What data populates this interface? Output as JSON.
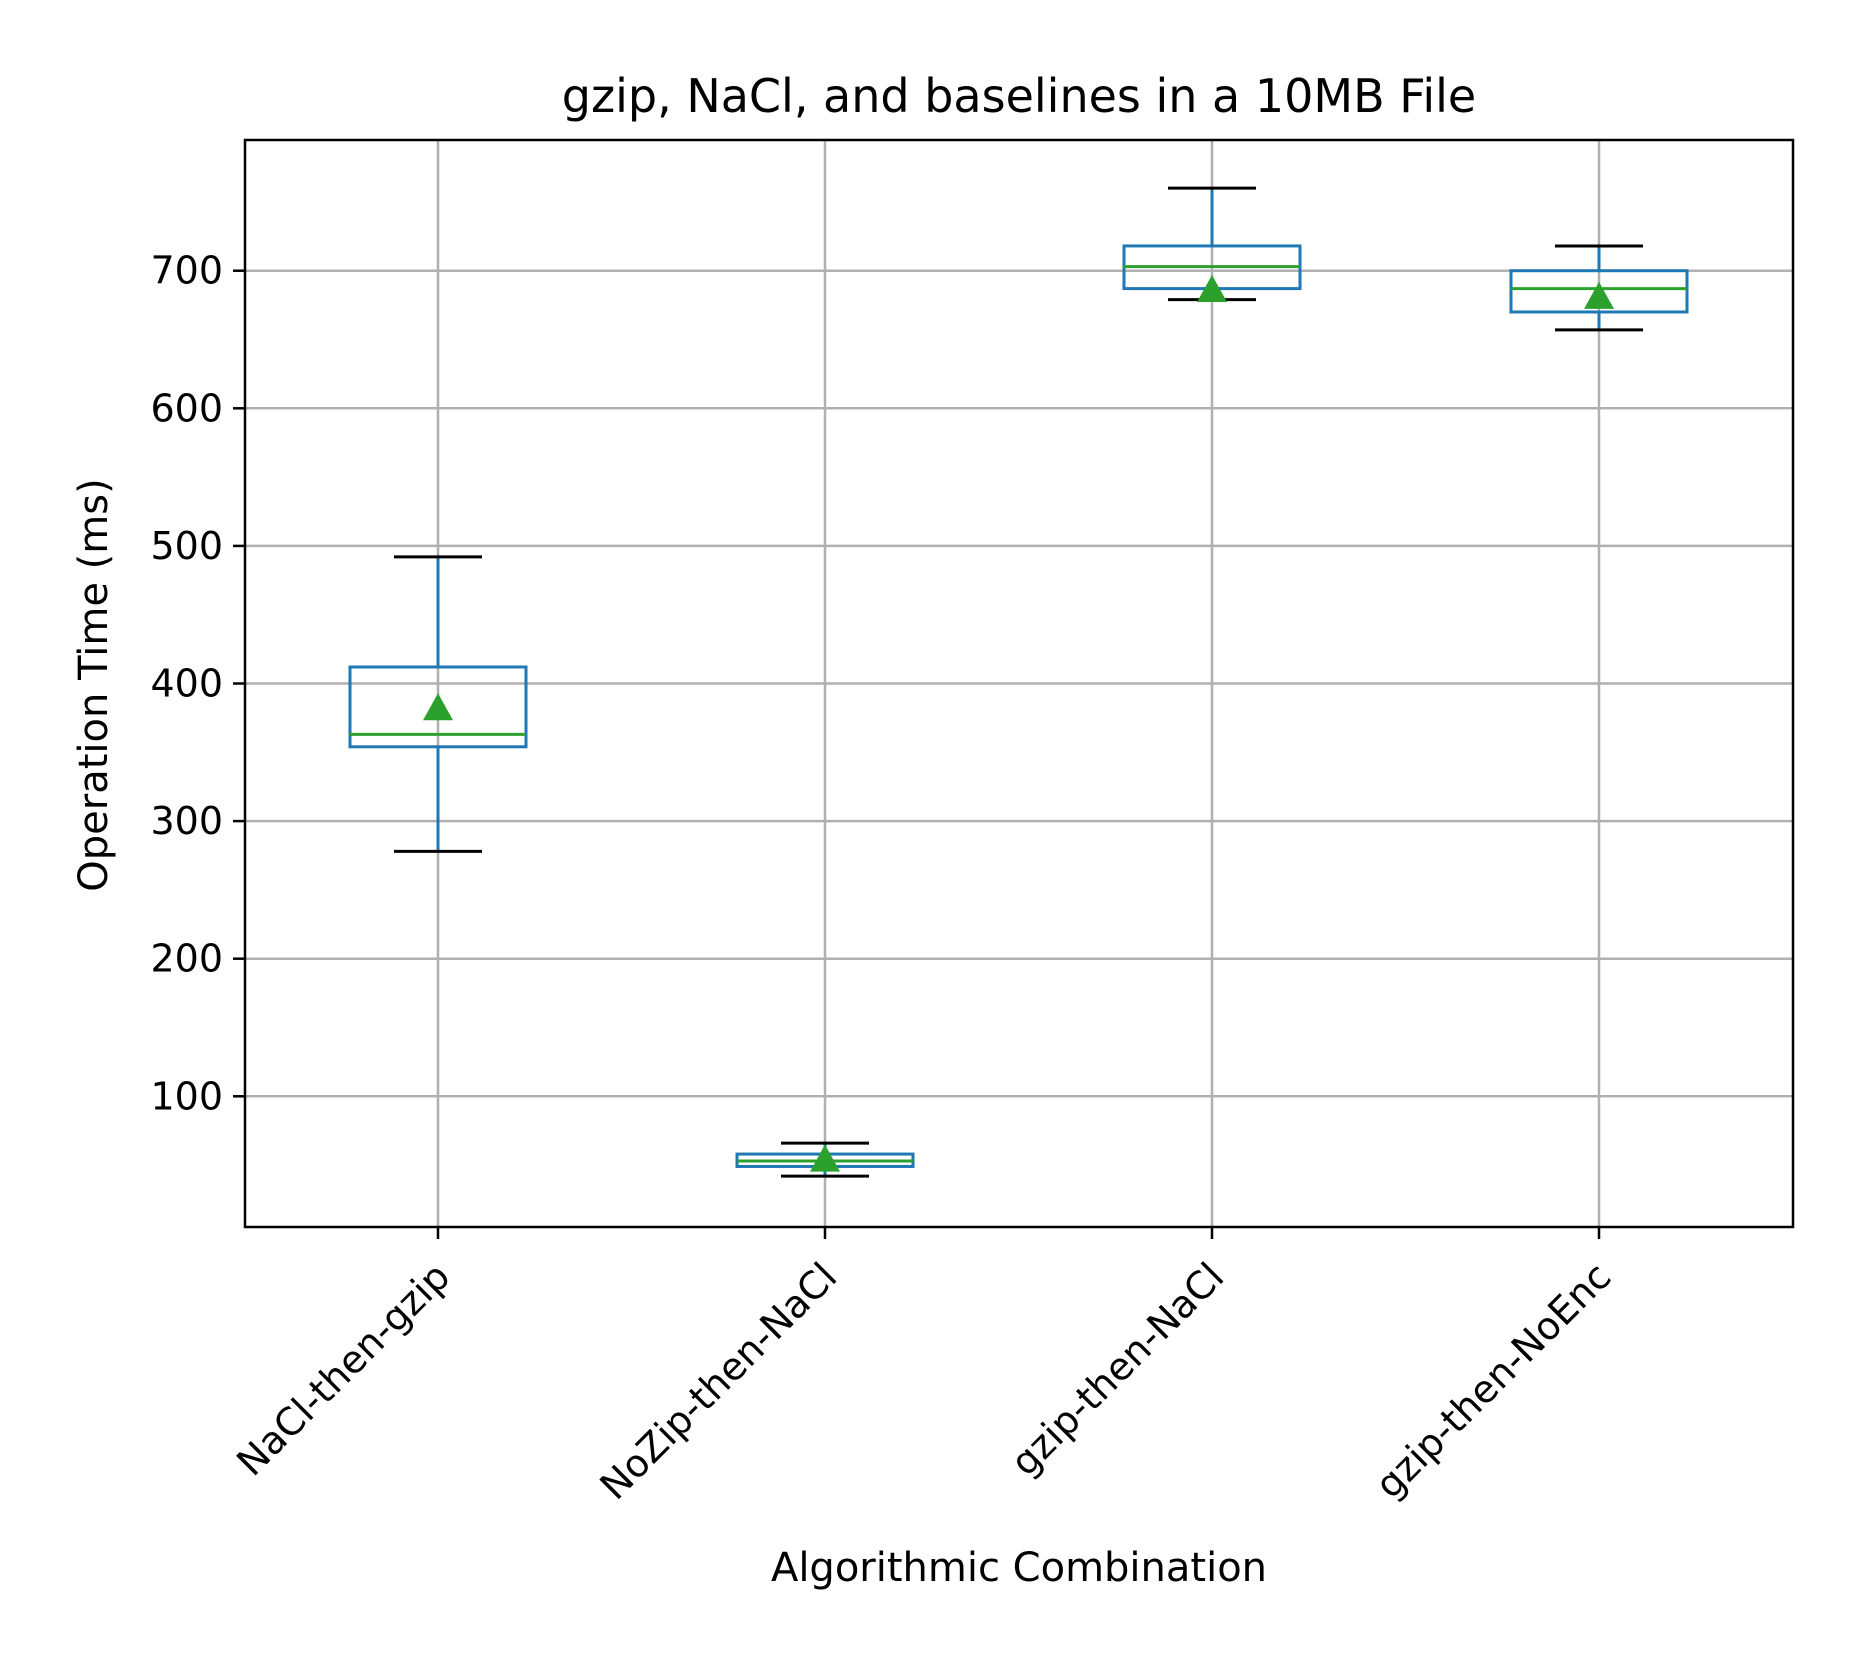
{
  "chart_data": {
    "type": "box",
    "title": "gzip, NaCl, and baselines in a 10MB File",
    "xlabel": "Algorithmic Combination",
    "ylabel": "Operation Time (ms)",
    "ylim": [
      5,
      795
    ],
    "yticks": [
      100,
      200,
      300,
      400,
      500,
      600,
      700
    ],
    "grid": true,
    "categories": [
      "NaCl-then-gzip",
      "NoZip-then-NaCl",
      "gzip-then-NaCl",
      "gzip-then-NoEnc"
    ],
    "boxes": [
      {
        "whisker_low": 278,
        "q1": 354,
        "median": 363,
        "q3": 412,
        "whisker_high": 492,
        "mean": 382
      },
      {
        "whisker_low": 42,
        "q1": 49,
        "median": 53,
        "q3": 58,
        "whisker_high": 66,
        "mean": 54
      },
      {
        "whisker_low": 679,
        "q1": 687,
        "median": 703,
        "q3": 718,
        "whisker_high": 760,
        "mean": 686
      },
      {
        "whisker_low": 657,
        "q1": 670,
        "median": 687,
        "q3": 700,
        "whisker_high": 718,
        "mean": 681
      }
    ],
    "colors": {
      "box": "#1f77b4",
      "median": "#2ca02c",
      "mean": "#2ca02c",
      "whisker_cap": "#000000"
    }
  }
}
